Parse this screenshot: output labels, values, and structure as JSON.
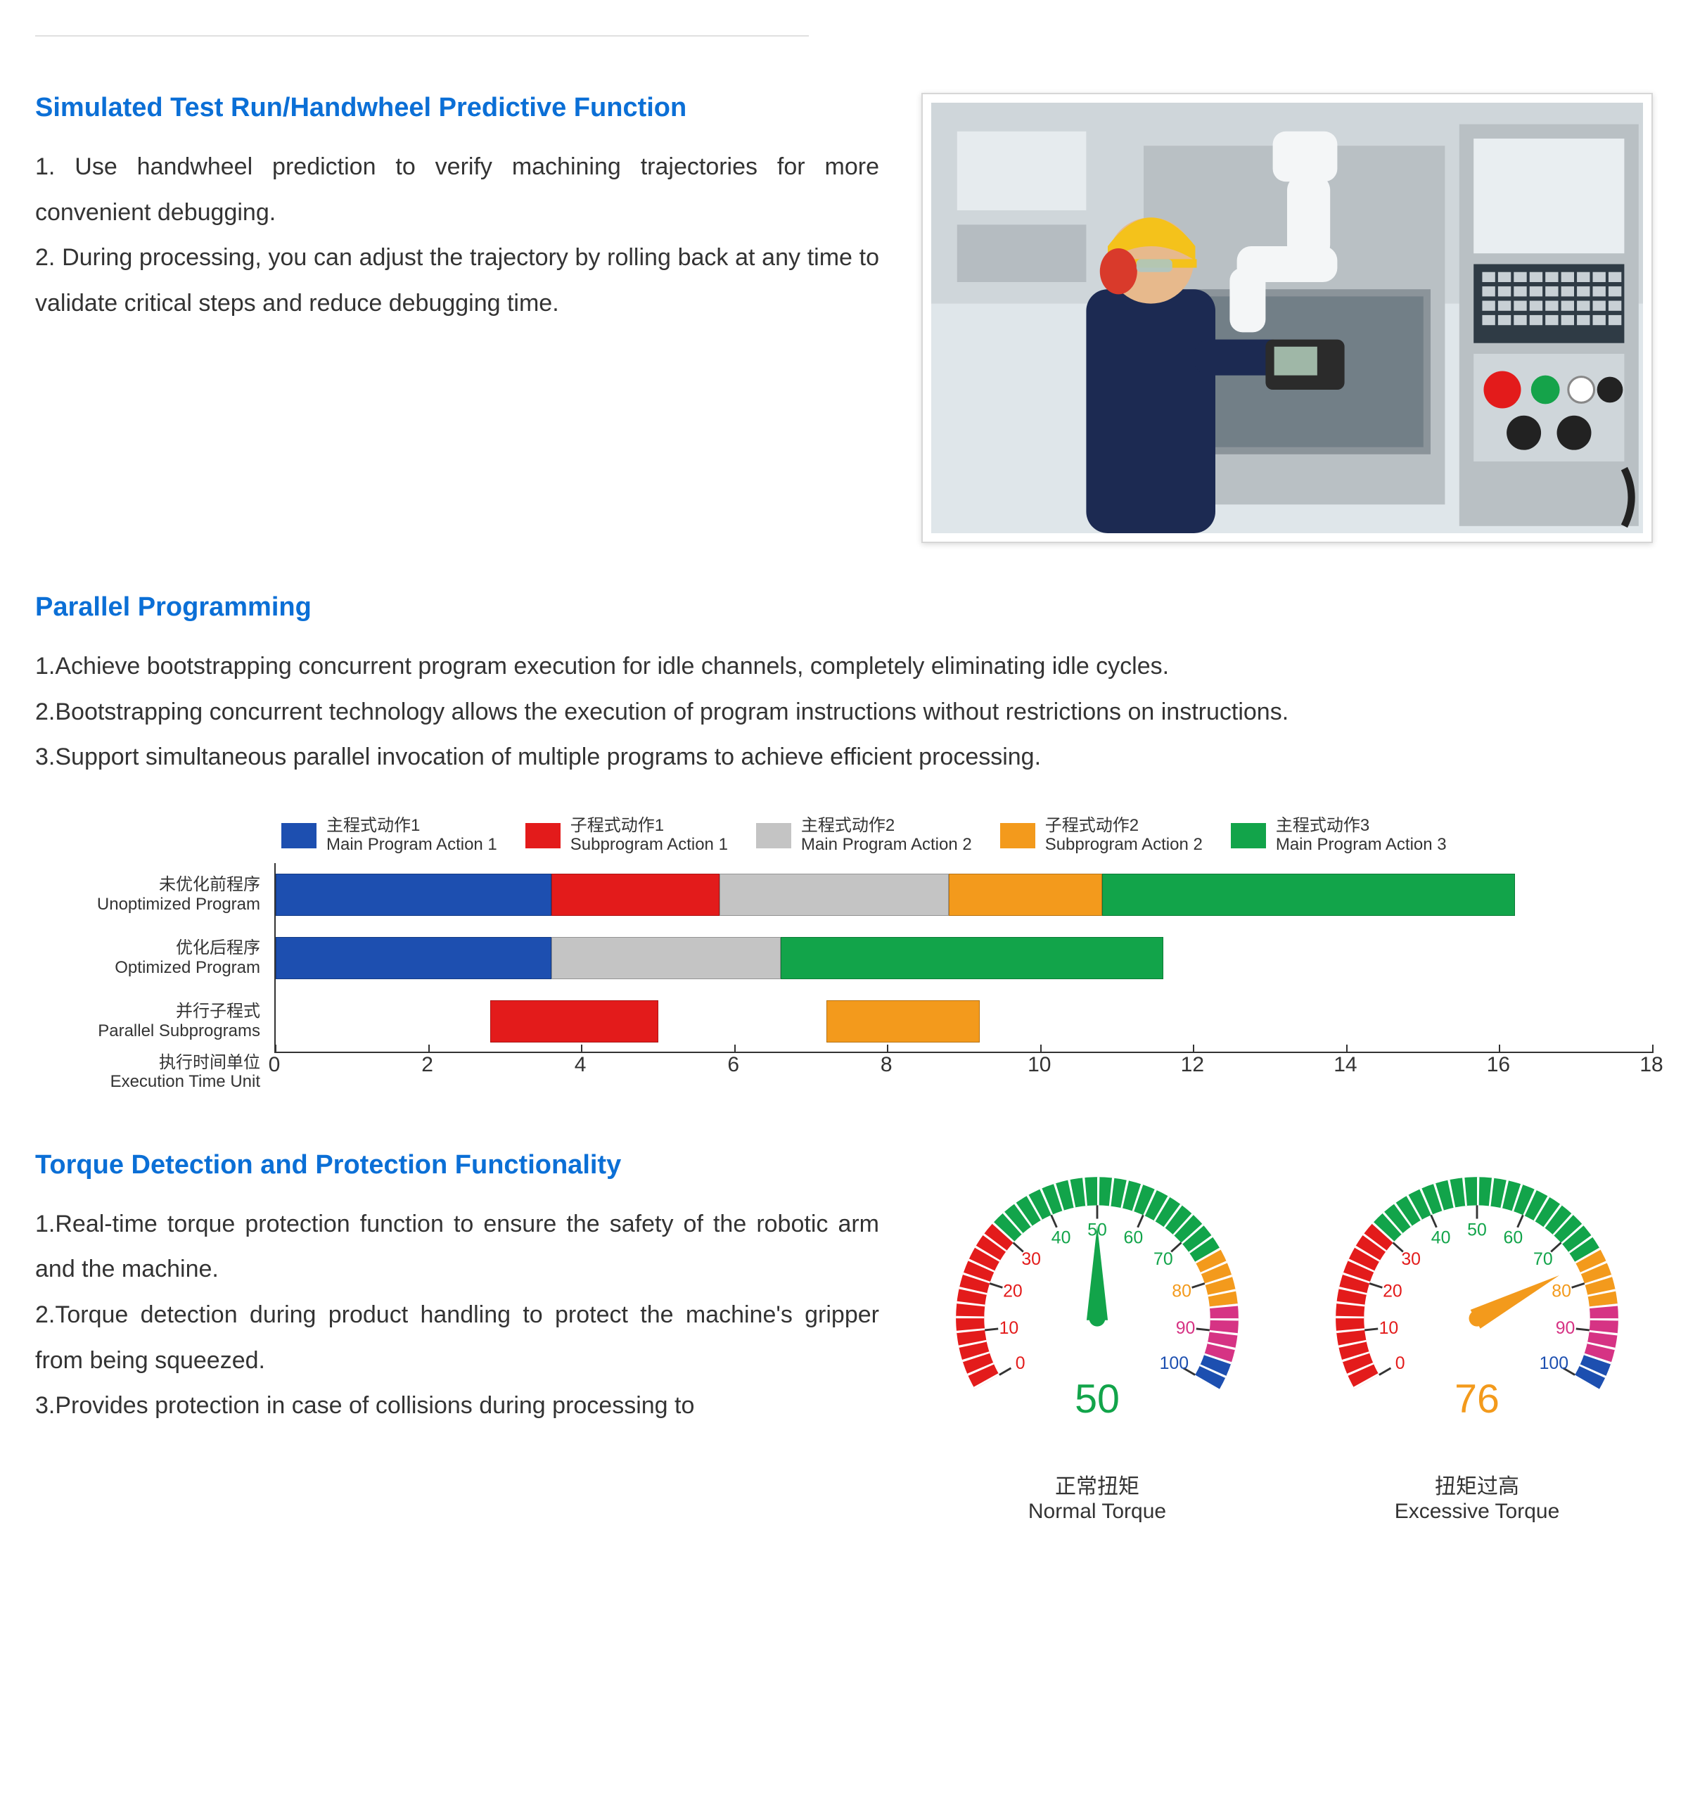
{
  "colors": {
    "heading": "#0b6fd6",
    "text": "#333333",
    "hr": "#e0e0e0"
  },
  "section1": {
    "title": "Simulated Test Run/Handwheel Predictive Function",
    "p1": "1. Use handwheel prediction to verify machining trajectories for more convenient debugging.",
    "p2": "2. During processing, you can adjust the trajectory by rolling back at any time to validate critical steps and reduce debugging time."
  },
  "section2": {
    "title": "Parallel Programming",
    "p1": "1.Achieve bootstrapping concurrent program execution for idle channels, completely eliminating idle cycles.",
    "p2": "2.Bootstrapping concurrent technology allows the execution of program instructions without restrictions on instructions.",
    "p3": "3.Support simultaneous parallel invocation of multiple programs to achieve efficient processing."
  },
  "gantt": {
    "xmax": 18,
    "xtick_step": 2,
    "legend": [
      {
        "cn": "主程式动作1",
        "en": "Main Program Action 1",
        "color": "#1d4fb0"
      },
      {
        "cn": "子程式动作1",
        "en": "Subprogram Action 1",
        "color": "#e31b1b"
      },
      {
        "cn": "主程式动作2",
        "en": "Main Program Action 2",
        "color": "#c4c4c4"
      },
      {
        "cn": "子程式动作2",
        "en": "Subprogram Action 2",
        "color": "#f39a1c"
      },
      {
        "cn": "主程式动作3",
        "en": "Main Program Action 3",
        "color": "#12a44a"
      }
    ],
    "row_labels": [
      {
        "cn": "未优化前程序",
        "en": "Unoptimized Program"
      },
      {
        "cn": "优化后程序",
        "en": "Optimized Program"
      },
      {
        "cn": "并行子程式",
        "en": "Parallel Subprograms"
      },
      {
        "cn": "执行时间单位",
        "en": "Execution Time Unit"
      }
    ],
    "rows": [
      [
        {
          "start": 0,
          "len": 3.6,
          "color": "#1d4fb0"
        },
        {
          "start": 3.6,
          "len": 2.2,
          "color": "#e31b1b"
        },
        {
          "start": 5.8,
          "len": 3.0,
          "color": "#c4c4c4"
        },
        {
          "start": 8.8,
          "len": 2.0,
          "color": "#f39a1c"
        },
        {
          "start": 10.8,
          "len": 5.4,
          "color": "#12a44a"
        }
      ],
      [
        {
          "start": 0,
          "len": 3.6,
          "color": "#1d4fb0"
        },
        {
          "start": 3.6,
          "len": 3.0,
          "color": "#c4c4c4"
        },
        {
          "start": 6.6,
          "len": 5.0,
          "color": "#12a44a"
        }
      ],
      [
        {
          "start": 2.8,
          "len": 2.2,
          "color": "#e31b1b"
        },
        {
          "start": 7.2,
          "len": 2.0,
          "color": "#f39a1c"
        }
      ]
    ]
  },
  "section3": {
    "title": "Torque Detection and Protection Functionality",
    "p1": "1.Real-time torque protection function to ensure the safety of the robotic arm and the machine.",
    "p2": "2.Torque detection during product handling to protect the machine's gripper from being squeezed.",
    "p3": "3.Provides protection in case of collisions during processing to"
  },
  "gauges": {
    "scale_min": 0,
    "scale_max": 100,
    "angle_start": 210,
    "angle_end": -30,
    "ticks": [
      0,
      10,
      20,
      30,
      40,
      50,
      60,
      70,
      80,
      90,
      100
    ],
    "bands": [
      {
        "from": 0,
        "to": 30,
        "color": "#e31b1b"
      },
      {
        "from": 30,
        "to": 75,
        "color": "#12a44a"
      },
      {
        "from": 75,
        "to": 85,
        "color": "#f39a1c"
      },
      {
        "from": 85,
        "to": 95,
        "color": "#d63384"
      },
      {
        "from": 95,
        "to": 100,
        "color": "#1d4fb0"
      }
    ],
    "tick_fontsize": 26,
    "value_fontsize": 60,
    "items": [
      {
        "value": 50,
        "value_color": "#12a44a",
        "needle_color": "#12a44a",
        "cn": "正常扭矩",
        "en": "Normal Torque"
      },
      {
        "value": 76,
        "value_color": "#f39a1c",
        "needle_color": "#f39a1c",
        "cn": "扭矩过高",
        "en": "Excessive Torque"
      }
    ]
  },
  "photo": {
    "bg": "#dfe6ea",
    "elements": {
      "console": "#b9c0c4",
      "screen": "#e9eef1",
      "button_panel": "#2f3b45",
      "helmet": "#f4c21b",
      "earmuff": "#d93a2b",
      "coverall": "#1c2a52",
      "robot": "#f4f6f7",
      "estop": "#e31b1b",
      "green_btn": "#15a34a"
    }
  }
}
